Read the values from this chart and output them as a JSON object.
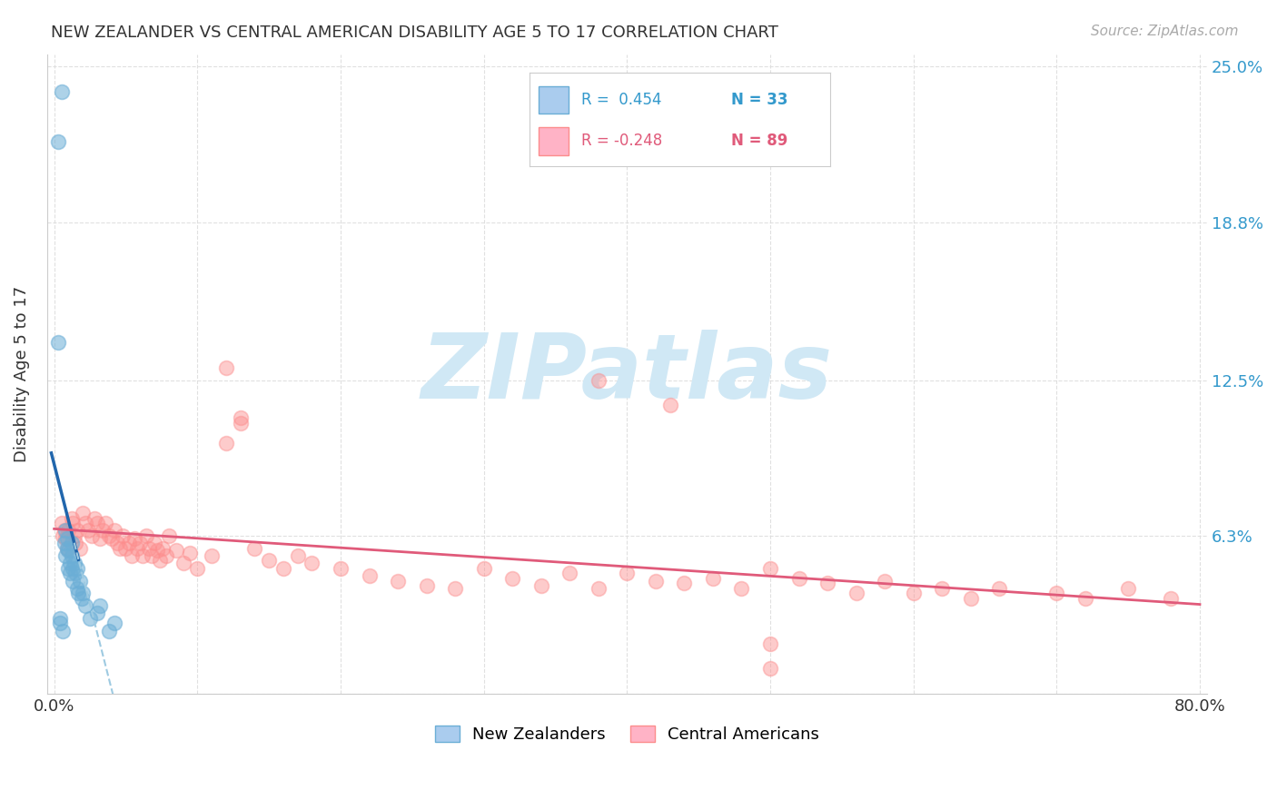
{
  "title": "NEW ZEALANDER VS CENTRAL AMERICAN DISABILITY AGE 5 TO 17 CORRELATION CHART",
  "source": "Source: ZipAtlas.com",
  "ylabel": "Disability Age 5 to 17",
  "xlim": [
    0,
    0.8
  ],
  "ylim": [
    0,
    0.25
  ],
  "ytick_vals": [
    0.0,
    0.063,
    0.125,
    0.188,
    0.25
  ],
  "ytick_labels": [
    "",
    "6.3%",
    "12.5%",
    "18.8%",
    "25.0%"
  ],
  "xtick_vals": [
    0.0,
    0.1,
    0.2,
    0.3,
    0.4,
    0.5,
    0.6,
    0.7,
    0.8
  ],
  "xtick_labels": [
    "0.0%",
    "",
    "",
    "",
    "",
    "",
    "",
    "",
    "80.0%"
  ],
  "legend_blue_R": "R =  0.454",
  "legend_blue_N": "N = 33",
  "legend_pink_R": "R = -0.248",
  "legend_pink_N": "N = 89",
  "blue_scatter_color": "#6baed6",
  "pink_scatter_color": "#fc8d8d",
  "blue_line_color": "#2166ac",
  "pink_line_color": "#e05a7a",
  "blue_dashed_color": "#9ecae1",
  "watermark": "ZIPatlas",
  "watermark_color": "#d0e8f5",
  "nz_x": [
    0.003,
    0.004,
    0.005,
    0.006,
    0.007,
    0.008,
    0.008,
    0.009,
    0.009,
    0.01,
    0.01,
    0.011,
    0.011,
    0.012,
    0.012,
    0.013,
    0.013,
    0.014,
    0.015,
    0.016,
    0.016,
    0.017,
    0.018,
    0.019,
    0.02,
    0.022,
    0.025,
    0.03,
    0.032,
    0.038,
    0.003,
    0.004,
    0.042
  ],
  "nz_y": [
    0.22,
    0.03,
    0.24,
    0.025,
    0.06,
    0.065,
    0.055,
    0.058,
    0.062,
    0.05,
    0.057,
    0.052,
    0.048,
    0.055,
    0.06,
    0.05,
    0.045,
    0.052,
    0.048,
    0.042,
    0.05,
    0.04,
    0.045,
    0.038,
    0.04,
    0.035,
    0.03,
    0.032,
    0.035,
    0.025,
    0.14,
    0.028,
    0.028
  ],
  "ca_x": [
    0.005,
    0.006,
    0.007,
    0.008,
    0.009,
    0.01,
    0.012,
    0.013,
    0.014,
    0.015,
    0.016,
    0.018,
    0.02,
    0.022,
    0.024,
    0.026,
    0.028,
    0.03,
    0.032,
    0.034,
    0.036,
    0.038,
    0.04,
    0.042,
    0.044,
    0.046,
    0.048,
    0.05,
    0.052,
    0.054,
    0.056,
    0.058,
    0.06,
    0.062,
    0.064,
    0.066,
    0.068,
    0.07,
    0.072,
    0.074,
    0.076,
    0.078,
    0.08,
    0.085,
    0.09,
    0.095,
    0.1,
    0.11,
    0.12,
    0.13,
    0.14,
    0.15,
    0.16,
    0.17,
    0.18,
    0.2,
    0.22,
    0.24,
    0.26,
    0.28,
    0.3,
    0.32,
    0.34,
    0.36,
    0.38,
    0.4,
    0.42,
    0.44,
    0.46,
    0.48,
    0.5,
    0.52,
    0.54,
    0.56,
    0.58,
    0.6,
    0.62,
    0.64,
    0.66,
    0.7,
    0.72,
    0.75,
    0.78,
    0.43,
    0.38,
    0.5,
    0.12,
    0.13,
    0.5
  ],
  "ca_y": [
    0.068,
    0.063,
    0.065,
    0.062,
    0.058,
    0.065,
    0.07,
    0.068,
    0.063,
    0.06,
    0.065,
    0.058,
    0.072,
    0.068,
    0.065,
    0.063,
    0.07,
    0.068,
    0.062,
    0.065,
    0.068,
    0.063,
    0.062,
    0.065,
    0.06,
    0.058,
    0.063,
    0.058,
    0.06,
    0.055,
    0.062,
    0.058,
    0.06,
    0.055,
    0.063,
    0.058,
    0.055,
    0.06,
    0.057,
    0.053,
    0.058,
    0.055,
    0.063,
    0.057,
    0.052,
    0.056,
    0.05,
    0.055,
    0.1,
    0.11,
    0.058,
    0.053,
    0.05,
    0.055,
    0.052,
    0.05,
    0.047,
    0.045,
    0.043,
    0.042,
    0.05,
    0.046,
    0.043,
    0.048,
    0.042,
    0.048,
    0.045,
    0.044,
    0.046,
    0.042,
    0.05,
    0.046,
    0.044,
    0.04,
    0.045,
    0.04,
    0.042,
    0.038,
    0.042,
    0.04,
    0.038,
    0.042,
    0.038,
    0.115,
    0.125,
    0.02,
    0.13,
    0.108,
    0.01
  ],
  "background_color": "#ffffff",
  "grid_color": "#dddddd"
}
